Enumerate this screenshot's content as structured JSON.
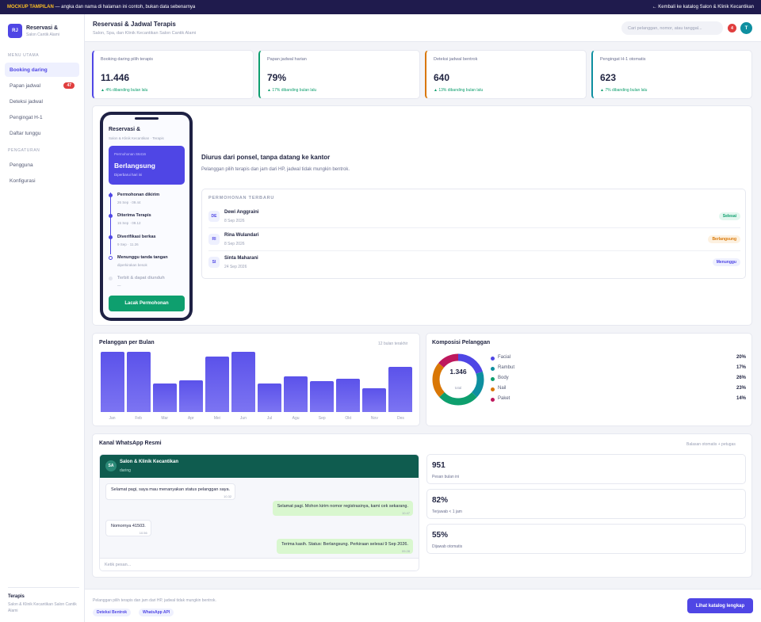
{
  "topbar": {
    "mock_label": "MOCKUP TAMPILAN",
    "notice": "— angka dan nama di halaman ini contoh, bukan data sebenarnya",
    "back_link": "← Kembali ke katalog Salon & Klinik Kecantikan"
  },
  "brand": {
    "logo": "RJ",
    "title": "Reservasi &",
    "subtitle": "Salon Cantik Alami"
  },
  "sidebar": {
    "main_section": "MENU UTAMA",
    "items": [
      {
        "label": "Booking daring",
        "badge": ""
      },
      {
        "label": "Papan jadwal",
        "badge": "47"
      },
      {
        "label": "Deteksi jadwal",
        "badge": ""
      },
      {
        "label": "Pengingat H-1",
        "badge": ""
      },
      {
        "label": "Daftar tunggu",
        "badge": ""
      }
    ],
    "settings_section": "PENGATURAN",
    "settings_items": [
      {
        "label": "Pengguna"
      },
      {
        "label": "Konfigurasi"
      }
    ],
    "footer_title": "Terapis",
    "footer_sub": "Salon & Klinik Kecantikan Salon Cantik Alami"
  },
  "header": {
    "title": "Reservasi & Jadwal Terapis",
    "subtitle": "Salon, Spa, dan Klinik Kecantikan Salon Cantik Alami",
    "search_placeholder": "Cari pelanggan, nomor, atau tanggal...",
    "notif_count": "4",
    "user_initial": "T"
  },
  "kpis": [
    {
      "label": "Booking daring pilih terapis",
      "value": "11.446",
      "delta": "▲ 4% dibanding bulan lalu",
      "accent": "#4f46e5"
    },
    {
      "label": "Papan jadwal harian",
      "value": "79%",
      "delta": "▲ 17% dibanding bulan lalu",
      "accent": "#0e9f6e"
    },
    {
      "label": "Deteksi jadwal bentrok",
      "value": "640",
      "delta": "▲ 13% dibanding bulan lalu",
      "accent": "#d97706"
    },
    {
      "label": "Pengingat H-1 otomatis",
      "value": "623",
      "delta": "▲ 7% dibanding bulan lalu",
      "accent": "#0e8fa0"
    }
  ],
  "phone": {
    "title": "Reservasi &",
    "subtitle": "Salon & Klinik Kecantikan · Terapis",
    "card_number": "Permohonan S6416",
    "card_status": "Berlangsung",
    "card_note": "Diperbarui hari ini",
    "timeline": [
      {
        "title": "Permohonan dikirim",
        "time": "26 Sep · 09.44",
        "state": "done"
      },
      {
        "title": "Diterima Terapis",
        "time": "15 Sep · 09.12",
        "state": "done"
      },
      {
        "title": "Diverifikasi berkas",
        "time": "9 Sep · 11.26",
        "state": "done"
      },
      {
        "title": "Menunggu tanda tangan",
        "time": "diperkirakan besok",
        "state": "current"
      },
      {
        "title": "Terbit & dapat diunduh",
        "time": "—",
        "state": "pending"
      }
    ],
    "button": "Lacak Permohonan"
  },
  "hero": {
    "title": "Diurus dari ponsel, tanpa datang ke kantor",
    "desc": "Pelanggan pilih terapis dan jam dari HP, jadwal tidak mungkin bentrok."
  },
  "requests": {
    "heading": "PERMOHONAN TERBARU",
    "rows": [
      {
        "initials": "DE",
        "name": "Dewi Anggraini",
        "date": "8 Sep 2026",
        "status": "Selesai",
        "fg": "#0e9f6e",
        "bg": "#e3f7ef"
      },
      {
        "initials": "RI",
        "name": "Rina Wulandari",
        "date": "8 Sep 2026",
        "status": "Berlangsung",
        "fg": "#d97706",
        "bg": "#fdf1e0"
      },
      {
        "initials": "SI",
        "name": "Sinta Maharani",
        "date": "24 Sep 2026",
        "status": "Menunggu",
        "fg": "#4f46e5",
        "bg": "#eef0fe"
      }
    ]
  },
  "monthly": {
    "title": "Pelanggan per Bulan",
    "note": "12 bulan terakhir"
  },
  "composition": {
    "title": "Komposisi Pelanggan",
    "total": "1.346",
    "total_label": "total",
    "items": [
      {
        "name": "Facial",
        "pct": "20%",
        "value": 20,
        "color": "#4f46e5"
      },
      {
        "name": "Rambut",
        "pct": "17%",
        "value": 17,
        "color": "#0e8fa0"
      },
      {
        "name": "Body",
        "pct": "26%",
        "value": 26,
        "color": "#0e9f6e"
      },
      {
        "name": "Nail",
        "pct": "23%",
        "value": 23,
        "color": "#d97706"
      },
      {
        "name": "Paket",
        "pct": "14%",
        "value": 14,
        "color": "#be185d"
      }
    ]
  },
  "chart_data": {
    "type": "bar",
    "categories": [
      "Jan",
      "Feb",
      "Mar",
      "Apr",
      "Mei",
      "Jun",
      "Jul",
      "Agu",
      "Sep",
      "Okt",
      "Nov",
      "Des"
    ],
    "values": [
      100,
      100,
      48,
      53,
      92,
      100,
      47,
      59,
      51,
      55,
      39,
      75
    ],
    "ylim": [
      0,
      100
    ],
    "grid": false
  },
  "whatsapp": {
    "title": "Kanal WhatsApp Resmi",
    "note": "Balasan otomatis + petugas",
    "avatar": "SA",
    "name": "Salon & Klinik Kecantikan",
    "status": "daring",
    "messages": [
      {
        "dir": "in",
        "text": "Selamat pagi, saya mau menanyakan status pelanggan saya.",
        "time": "10.32"
      },
      {
        "dir": "out",
        "text": "Selamat pagi. Mohon kirim nomor registrasinya, kami cek sekarang.",
        "time": "10.47"
      },
      {
        "dir": "in",
        "text": "Nomornya 41503.",
        "time": "10.56"
      },
      {
        "dir": "out",
        "text": "Terima kasih. Status: Berlangsung. Perkiraan selesai 9 Sep 2026.",
        "time": "09.28"
      }
    ],
    "input_placeholder": "Ketik pesan..."
  },
  "wa_stats": [
    {
      "value": "951",
      "label": "Pesan bulan ini"
    },
    {
      "value": "82%",
      "label": "Terjawab < 1 jam"
    },
    {
      "value": "55%",
      "label": "Dijawab otomatis"
    }
  ],
  "footer": {
    "desc": "Pelanggan pilih terapis dan jam dari HP, jadwal tidak mungkin bentrok.",
    "chips": [
      "Deteksi Bentrok",
      "WhatsApp API"
    ],
    "cta": "Lihat katalog lengkap"
  }
}
